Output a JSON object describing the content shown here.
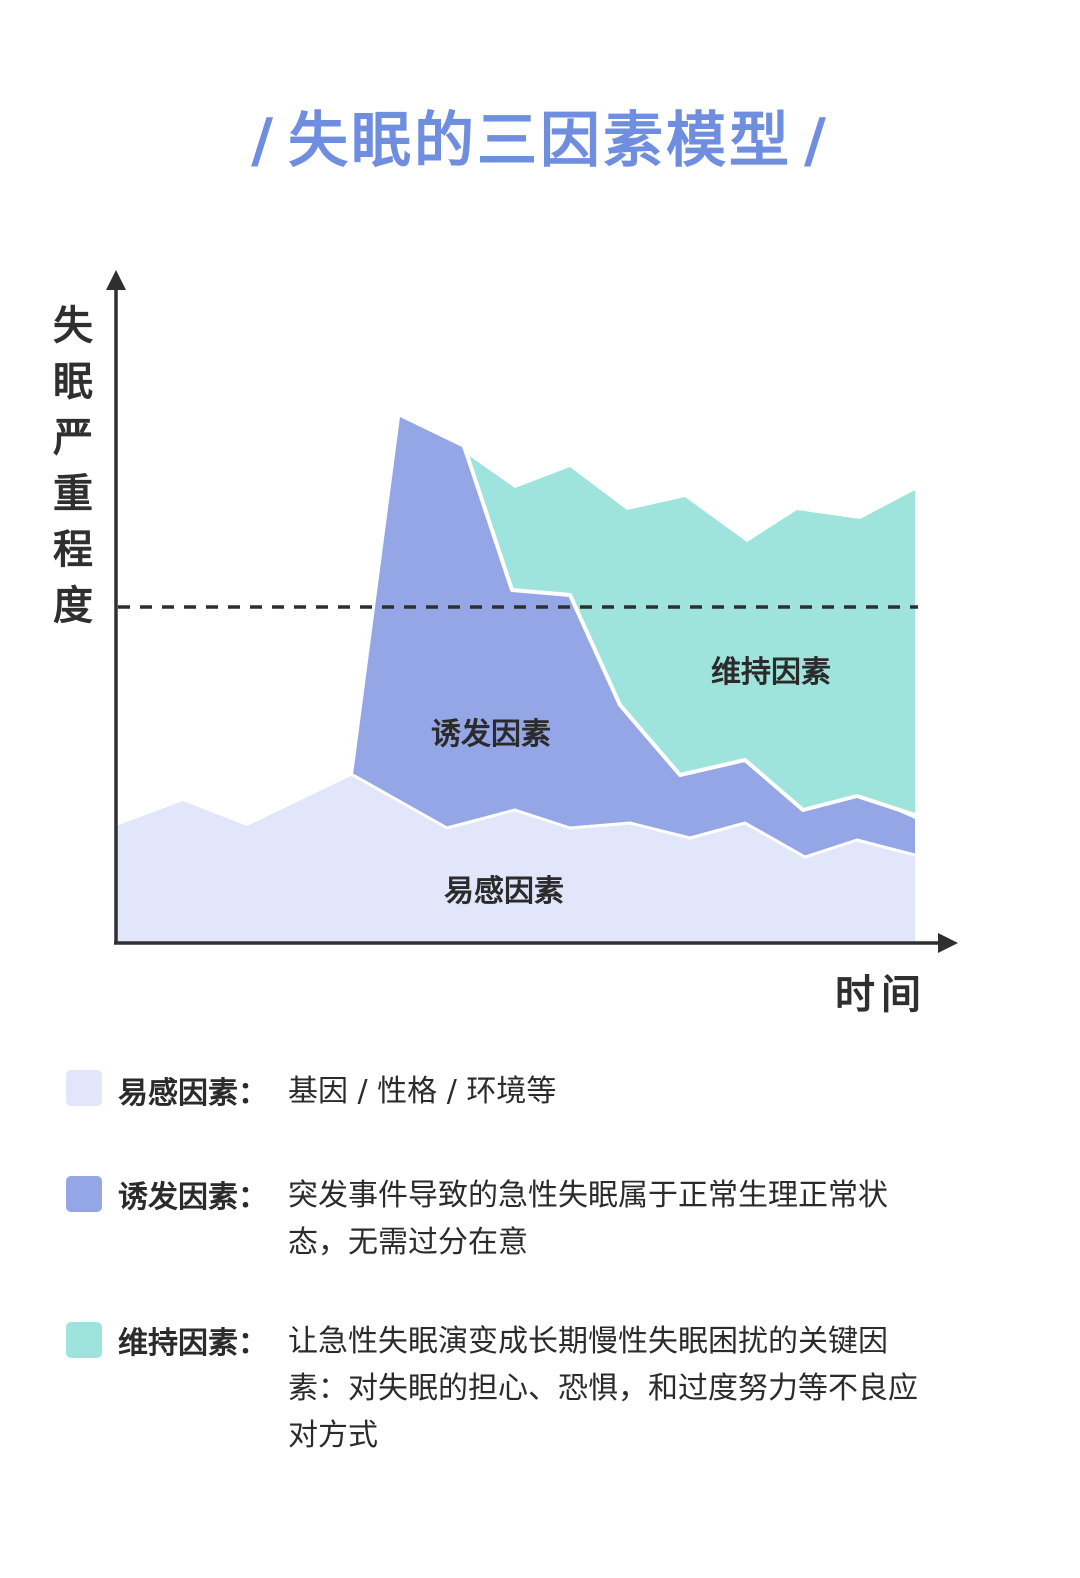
{
  "title": "失眠的三因素模型",
  "title_slash": "/",
  "axes": {
    "y_label": [
      "失",
      "眠",
      "严",
      "重",
      "程",
      "度"
    ],
    "x_label": "时间"
  },
  "factors": {
    "susceptible": {
      "label": "易感因素",
      "color": "#e2e6fa"
    },
    "trigger": {
      "label": "诱发因素",
      "color": "#94a6e6"
    },
    "maintain": {
      "label": "维持因素",
      "color": "#9fe4dc"
    }
  },
  "legend": [
    {
      "name": "易感因素：",
      "desc": "基因 / 性格 / 环境等",
      "color": "#e2e6fa"
    },
    {
      "name": "诱发因素：",
      "desc": "突发事件导致的急性失眠属于正常生理正常状态，无需过分在意",
      "color": "#94a6e6"
    },
    {
      "name": "维持因素：",
      "desc": "让急性失眠演变成长期慢性失眠困扰的关键因素：对失眠的担心、恐惧，和过度努力等不良应对方式",
      "color": "#9fe4dc"
    }
  ],
  "colors": {
    "axis": "#2f2f2f",
    "title": "#6f8ee0",
    "threshold": "#2f2f2f"
  }
}
